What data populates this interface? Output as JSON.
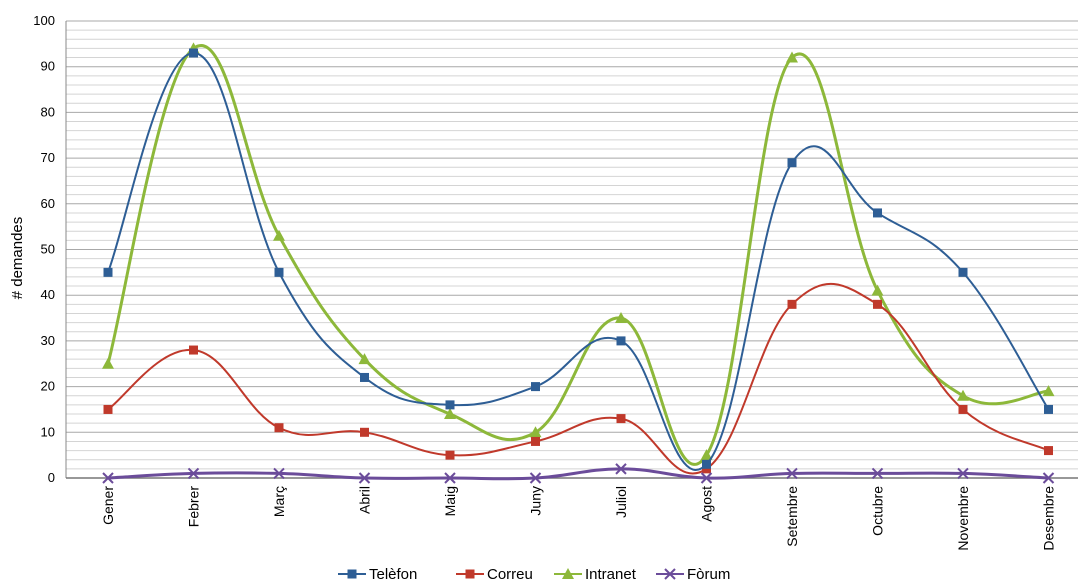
{
  "chart_data": {
    "type": "line",
    "title": "",
    "xlabel": "",
    "ylabel": "# demandes",
    "ylim": [
      0,
      100
    ],
    "yticks": [
      0,
      10,
      20,
      30,
      40,
      50,
      60,
      70,
      80,
      90,
      100
    ],
    "grid": true,
    "legend_position": "bottom",
    "categories": [
      "Gener",
      "Febrer",
      "Març",
      "Abril",
      "Maig",
      "Juny",
      "Juliol",
      "Agost",
      "Setembre",
      "Octubre",
      "Novembre",
      "Desembre"
    ],
    "series": [
      {
        "name": "Telèfon",
        "color": "#2E5E95",
        "marker": "square",
        "values": [
          45,
          93,
          45,
          22,
          16,
          20,
          30,
          3,
          69,
          58,
          45,
          15
        ]
      },
      {
        "name": "Correu",
        "color": "#C0392B",
        "marker": "square",
        "values": [
          15,
          28,
          11,
          10,
          5,
          8,
          13,
          2,
          38,
          38,
          15,
          6
        ]
      },
      {
        "name": "Intranet",
        "color": "#8DB83A",
        "marker": "triangle",
        "values": [
          25,
          94,
          53,
          26,
          14,
          10,
          35,
          5,
          92,
          41,
          18,
          19
        ]
      },
      {
        "name": "Fòrum",
        "color": "#6B4C9A",
        "marker": "x",
        "values": [
          0,
          1,
          1,
          0,
          0,
          0,
          2,
          0,
          1,
          1,
          1,
          0
        ]
      }
    ]
  }
}
